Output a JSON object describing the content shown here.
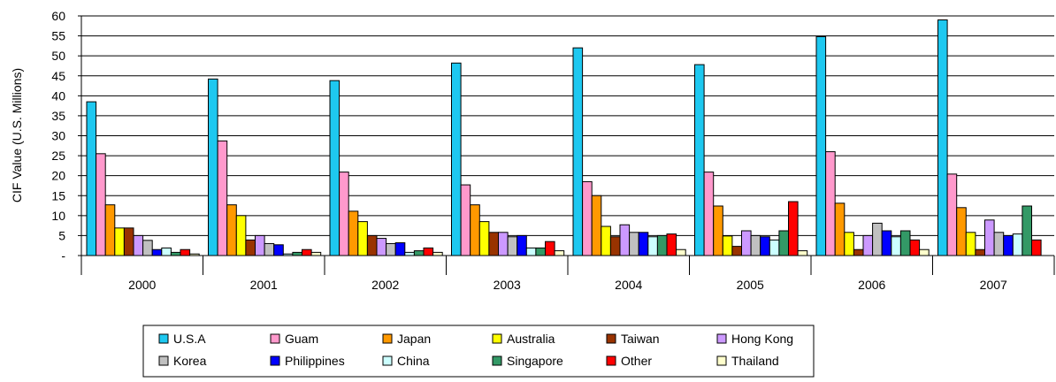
{
  "chart_data": {
    "type": "bar",
    "ylabel": "CIF Value (U.S. Millions)",
    "xlabel": "",
    "ylim": [
      0,
      60
    ],
    "yticks": [
      {
        "value": 0,
        "label": "-"
      },
      {
        "value": 5,
        "label": "5"
      },
      {
        "value": 10,
        "label": "10"
      },
      {
        "value": 15,
        "label": "15"
      },
      {
        "value": 20,
        "label": "20"
      },
      {
        "value": 25,
        "label": "25"
      },
      {
        "value": 30,
        "label": "30"
      },
      {
        "value": 35,
        "label": "35"
      },
      {
        "value": 40,
        "label": "40"
      },
      {
        "value": 45,
        "label": "45"
      },
      {
        "value": 50,
        "label": "50"
      },
      {
        "value": 55,
        "label": "55"
      },
      {
        "value": 60,
        "label": "60"
      }
    ],
    "grid": true,
    "legend_position": "bottom",
    "categories": [
      "2000",
      "2001",
      "2002",
      "2003",
      "2004",
      "2005",
      "2006",
      "2007"
    ],
    "series": [
      {
        "name": "U.S.A",
        "color": "#1ec8f0",
        "values": [
          38.5,
          44.2,
          43.8,
          48.2,
          52.0,
          47.8,
          54.8,
          59.0
        ]
      },
      {
        "name": "Guam",
        "color": "#ff99cc",
        "values": [
          25.5,
          28.7,
          20.9,
          17.7,
          18.5,
          20.9,
          26.0,
          20.4
        ]
      },
      {
        "name": "Japan",
        "color": "#ff9900",
        "values": [
          12.7,
          12.7,
          11.1,
          12.7,
          15.0,
          12.4,
          13.1,
          12.0
        ]
      },
      {
        "name": "Australia",
        "color": "#ffff00",
        "values": [
          6.9,
          10.0,
          8.5,
          8.5,
          7.3,
          4.9,
          5.8,
          5.8
        ]
      },
      {
        "name": "Taiwan",
        "color": "#993300",
        "values": [
          6.9,
          3.9,
          5.0,
          5.8,
          4.7,
          2.3,
          1.5,
          1.5
        ]
      },
      {
        "name": "Hong Kong",
        "color": "#cc99ff",
        "values": [
          5.0,
          5.0,
          4.3,
          5.8,
          7.7,
          6.2,
          5.0,
          8.9
        ]
      },
      {
        "name": "Korea",
        "color": "#c0c0c0",
        "values": [
          3.8,
          3.0,
          3.0,
          4.7,
          5.8,
          5.0,
          8.1,
          5.8
        ]
      },
      {
        "name": "Philippines",
        "color": "#0000ff",
        "values": [
          1.5,
          2.7,
          3.2,
          5.0,
          5.8,
          4.7,
          6.2,
          5.0
        ]
      },
      {
        "name": "China",
        "color": "#ccffff",
        "values": [
          1.9,
          0.4,
          0.8,
          1.9,
          4.7,
          3.9,
          4.7,
          5.4
        ]
      },
      {
        "name": "Singapore",
        "color": "#339966",
        "values": [
          0.8,
          0.8,
          1.2,
          1.9,
          5.0,
          6.2,
          6.2,
          12.4
        ]
      },
      {
        "name": "Other",
        "color": "#ff0000",
        "values": [
          1.5,
          1.5,
          1.9,
          3.5,
          5.4,
          13.5,
          3.9,
          3.9
        ]
      },
      {
        "name": "Thailand",
        "color": "#ffffcc",
        "values": [
          0.4,
          0.8,
          0.8,
          1.2,
          1.5,
          1.2,
          1.5,
          0.0
        ]
      }
    ]
  }
}
